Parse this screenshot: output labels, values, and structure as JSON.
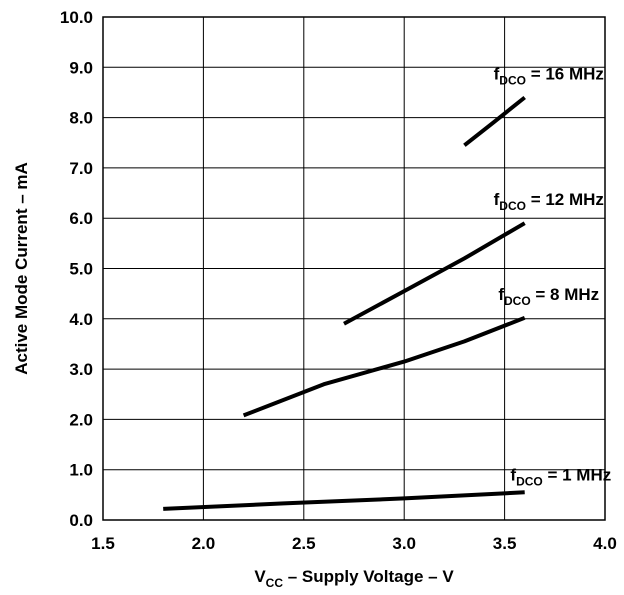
{
  "chart_data": {
    "type": "line",
    "xlabel": {
      "main": "V",
      "sub": "CC",
      "rest": " – Supply Voltage – V"
    },
    "ylabel": "Active Mode Current – mA",
    "xlim": [
      1.5,
      4.0
    ],
    "ylim": [
      0.0,
      10.0
    ],
    "xticks": [
      "1.5",
      "2.0",
      "2.5",
      "3.0",
      "3.5",
      "4.0"
    ],
    "yticks": [
      "0.0",
      "1.0",
      "2.0",
      "3.0",
      "4.0",
      "5.0",
      "6.0",
      "7.0",
      "8.0",
      "9.0",
      "10.0"
    ],
    "grid": true,
    "series": [
      {
        "name": "fDCO = 16 MHz",
        "label": {
          "main": "f",
          "sub": "DCO",
          "rest": " = 16 MHz"
        },
        "x": [
          3.3,
          3.45,
          3.6
        ],
        "y": [
          7.45,
          7.92,
          8.4
        ]
      },
      {
        "name": "fDCO = 12 MHz",
        "label": {
          "main": "f",
          "sub": "DCO",
          "rest": " = 12 MHz"
        },
        "x": [
          2.7,
          3.0,
          3.3,
          3.6
        ],
        "y": [
          3.9,
          4.55,
          5.2,
          5.9
        ]
      },
      {
        "name": "fDCO = 8 MHz",
        "label": {
          "main": "f",
          "sub": "DCO",
          "rest": " = 8 MHz"
        },
        "x": [
          2.2,
          2.6,
          3.0,
          3.3,
          3.6
        ],
        "y": [
          2.08,
          2.7,
          3.15,
          3.55,
          4.02
        ]
      },
      {
        "name": "fDCO = 1 MHz",
        "label": {
          "main": "f",
          "sub": "DCO",
          "rest": " = 1 MHz"
        },
        "x": [
          1.8,
          2.4,
          3.0,
          3.6
        ],
        "y": [
          0.22,
          0.33,
          0.43,
          0.55
        ]
      }
    ]
  }
}
